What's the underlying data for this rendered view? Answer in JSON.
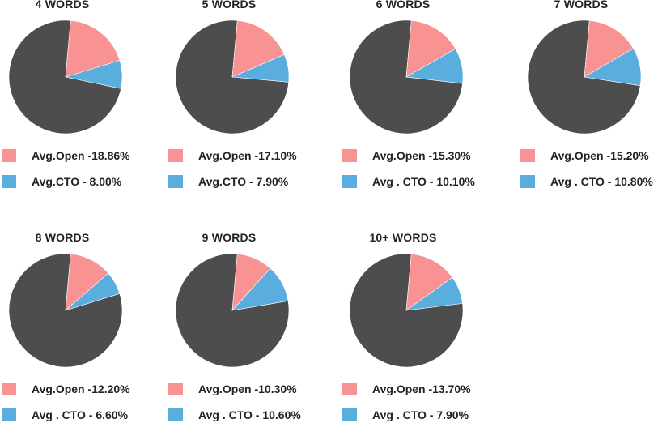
{
  "colors": {
    "open": "#f99393",
    "cto": "#5aaedd",
    "rest": "#4e4d4d",
    "text": "#222222"
  },
  "chart_data": [
    {
      "type": "pie",
      "title": "4 WORDS",
      "slices": [
        {
          "label": "Avg.Open -18.86%",
          "value": 18.86,
          "color": "#f99393"
        },
        {
          "label": "Avg.CTO - 8.00%",
          "value": 8.0,
          "color": "#5aaedd"
        }
      ]
    },
    {
      "type": "pie",
      "title": "5 WORDS",
      "slices": [
        {
          "label": "Avg.Open -17.10%",
          "value": 17.1,
          "color": "#f99393"
        },
        {
          "label": "Avg.CTO - 7.90%",
          "value": 7.9,
          "color": "#5aaedd"
        }
      ]
    },
    {
      "type": "pie",
      "title": "6 WORDS",
      "slices": [
        {
          "label": "Avg.Open -15.30%",
          "value": 15.3,
          "color": "#f99393"
        },
        {
          "label": "Avg . CTO - 10.10%",
          "value": 10.1,
          "color": "#5aaedd"
        }
      ]
    },
    {
      "type": "pie",
      "title": "7 WORDS",
      "slices": [
        {
          "label": "Avg.Open -15.20%",
          "value": 15.2,
          "color": "#f99393"
        },
        {
          "label": "Avg . CTO - 10.80%",
          "value": 10.8,
          "color": "#5aaedd"
        }
      ]
    },
    {
      "type": "pie",
      "title": "8 WORDS",
      "slices": [
        {
          "label": "Avg.Open -12.20%",
          "value": 12.2,
          "color": "#f99393"
        },
        {
          "label": "Avg . CTO - 6.60%",
          "value": 6.6,
          "color": "#5aaedd"
        }
      ]
    },
    {
      "type": "pie",
      "title": "9 WORDS",
      "slices": [
        {
          "label": "Avg.Open -10.30%",
          "value": 10.3,
          "color": "#f99393"
        },
        {
          "label": "Avg . CTO - 10.60%",
          "value": 10.6,
          "color": "#5aaedd"
        }
      ]
    },
    {
      "type": "pie",
      "title": "10+ WORDS",
      "slices": [
        {
          "label": "Avg.Open -13.70%",
          "value": 13.7,
          "color": "#f99393"
        },
        {
          "label": "Avg . CTO - 7.90%",
          "value": 7.9,
          "color": "#5aaedd"
        }
      ]
    }
  ]
}
